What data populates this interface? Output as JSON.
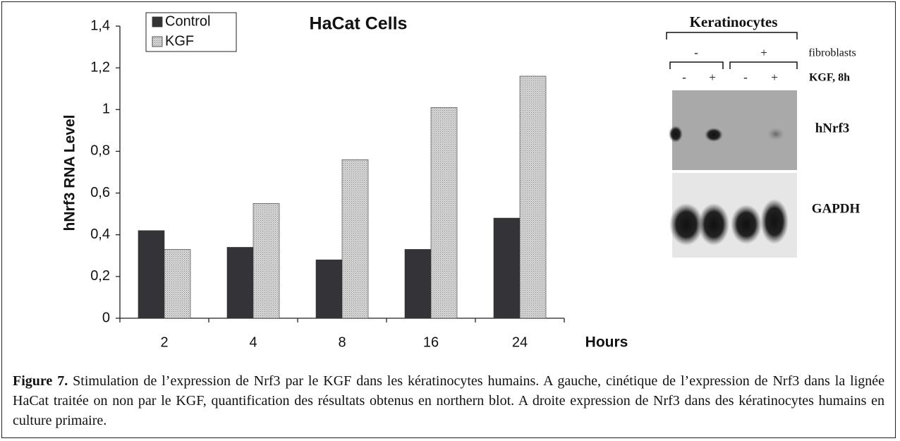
{
  "chart_data": {
    "type": "bar",
    "title": "HaCat Cells",
    "y_label": "hNrf3 RNA Level",
    "x_label": "Hours",
    "categories": [
      "2",
      "4",
      "8",
      "16",
      "24"
    ],
    "series": [
      {
        "name": "Control",
        "color": "#333338",
        "values": [
          0.42,
          0.34,
          0.28,
          0.33,
          0.48
        ]
      },
      {
        "name": "KGF",
        "color": "#cccccc",
        "values": [
          0.33,
          0.55,
          0.76,
          1.01,
          1.16
        ]
      }
    ],
    "ylim": [
      0,
      1.4
    ],
    "yticks": [
      0,
      {
        "value": 0.2,
        "label": "0,2"
      },
      {
        "value": 0.4,
        "label": "0,4"
      },
      {
        "value": 0.6,
        "label": "0,6"
      },
      {
        "value": 0.8,
        "label": "0,8"
      },
      1,
      {
        "value": 1.2,
        "label": "1,2"
      },
      {
        "value": 1.4,
        "label": "1,4"
      }
    ],
    "grid": false,
    "legend": "top-left"
  },
  "blot": {
    "cells": "Keratinocytes",
    "fibroblast_states": [
      "-",
      "+"
    ],
    "fibroblast_label": "fibroblasts",
    "kgf_states": [
      "-",
      "+",
      "-",
      "+"
    ],
    "kgf_label": "KGF, 8h",
    "rows": [
      "hNrf3",
      "GAPDH"
    ]
  },
  "caption": {
    "label": "Figure 7.",
    "text": "Stimulation de l’expression de Nrf3 par le KGF dans les kératinocytes humains. A gauche, cinétique de l’expression de Nrf3 dans la lignée HaCat traitée on non par le KGF, quantification des résultats obtenus en northern blot. A droite expression de Nrf3 dans des kératinocytes humains en culture primaire."
  }
}
